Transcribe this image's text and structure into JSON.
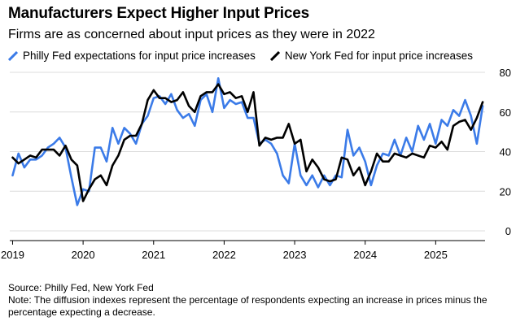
{
  "colors": {
    "philly": "#3b7be8",
    "newyork": "#000000",
    "grid": "#dcdcdc",
    "axis": "#000000"
  },
  "footer": {
    "source": "Source: Philly Fed, New York Fed",
    "note": "Note: The diffusion indexes represent the percentage of respondents expecting an increase in prices minus the percentage expecting a decrease."
  },
  "chart_data": {
    "type": "line",
    "title": "Manufacturers Expect Higher Input Prices",
    "subtitle": "Firms are as concerned about input prices as they were in 2022",
    "ylim": [
      0,
      80
    ],
    "yticks": [
      0,
      20,
      40,
      60,
      80
    ],
    "xlim": [
      2018.96,
      2025.7
    ],
    "xticks": [
      {
        "value": 2019,
        "label": "2019"
      },
      {
        "value": 2020,
        "label": "2020"
      },
      {
        "value": 2021,
        "label": "2021"
      },
      {
        "value": 2022,
        "label": "2022"
      },
      {
        "value": 2023,
        "label": "2023"
      },
      {
        "value": 2024,
        "label": "2024"
      },
      {
        "value": 2025,
        "label": "2025"
      }
    ],
    "grid": true,
    "legend_position": "top-left",
    "x_start": "2019-01",
    "x_step": "monthly",
    "series": [
      {
        "name": "Philly Fed expectations for input price increases",
        "color": "#3b7be8",
        "values": [
          28,
          39,
          32,
          36,
          36,
          38,
          42,
          44,
          47,
          42,
          27,
          13,
          21,
          20,
          42,
          42,
          35,
          52,
          44,
          52,
          49,
          44,
          54,
          58,
          67,
          68,
          64,
          69,
          61,
          57,
          59,
          53,
          66,
          69,
          60,
          77,
          62,
          66,
          64,
          65,
          57,
          57,
          44,
          46,
          44,
          39,
          28,
          24,
          44,
          28,
          23,
          28,
          22,
          28,
          23,
          28,
          27,
          51,
          38,
          42,
          35,
          23,
          33,
          39,
          38,
          46,
          38,
          47,
          40,
          53,
          46,
          54,
          44,
          56,
          53,
          61,
          58,
          66,
          58,
          44,
          63
        ]
      },
      {
        "name": "New York Fed for input price increases",
        "color": "#000000",
        "values": [
          37,
          34,
          36,
          38,
          37,
          41,
          41,
          41,
          38,
          43,
          36,
          33,
          15,
          21,
          26,
          28,
          23,
          33,
          38,
          46,
          48,
          48,
          54,
          66,
          71,
          67,
          67,
          65,
          66,
          70,
          63,
          60,
          68,
          70,
          70,
          74,
          69,
          70,
          67,
          68,
          60,
          70,
          43,
          47,
          46,
          47,
          47,
          54,
          44,
          46,
          30,
          36,
          32,
          26,
          25,
          26,
          37,
          36,
          28,
          32,
          23,
          30,
          39,
          35,
          35,
          39,
          38,
          37,
          39,
          38,
          37,
          43,
          42,
          45,
          41,
          53,
          55,
          56,
          51,
          57,
          65
        ]
      }
    ]
  }
}
